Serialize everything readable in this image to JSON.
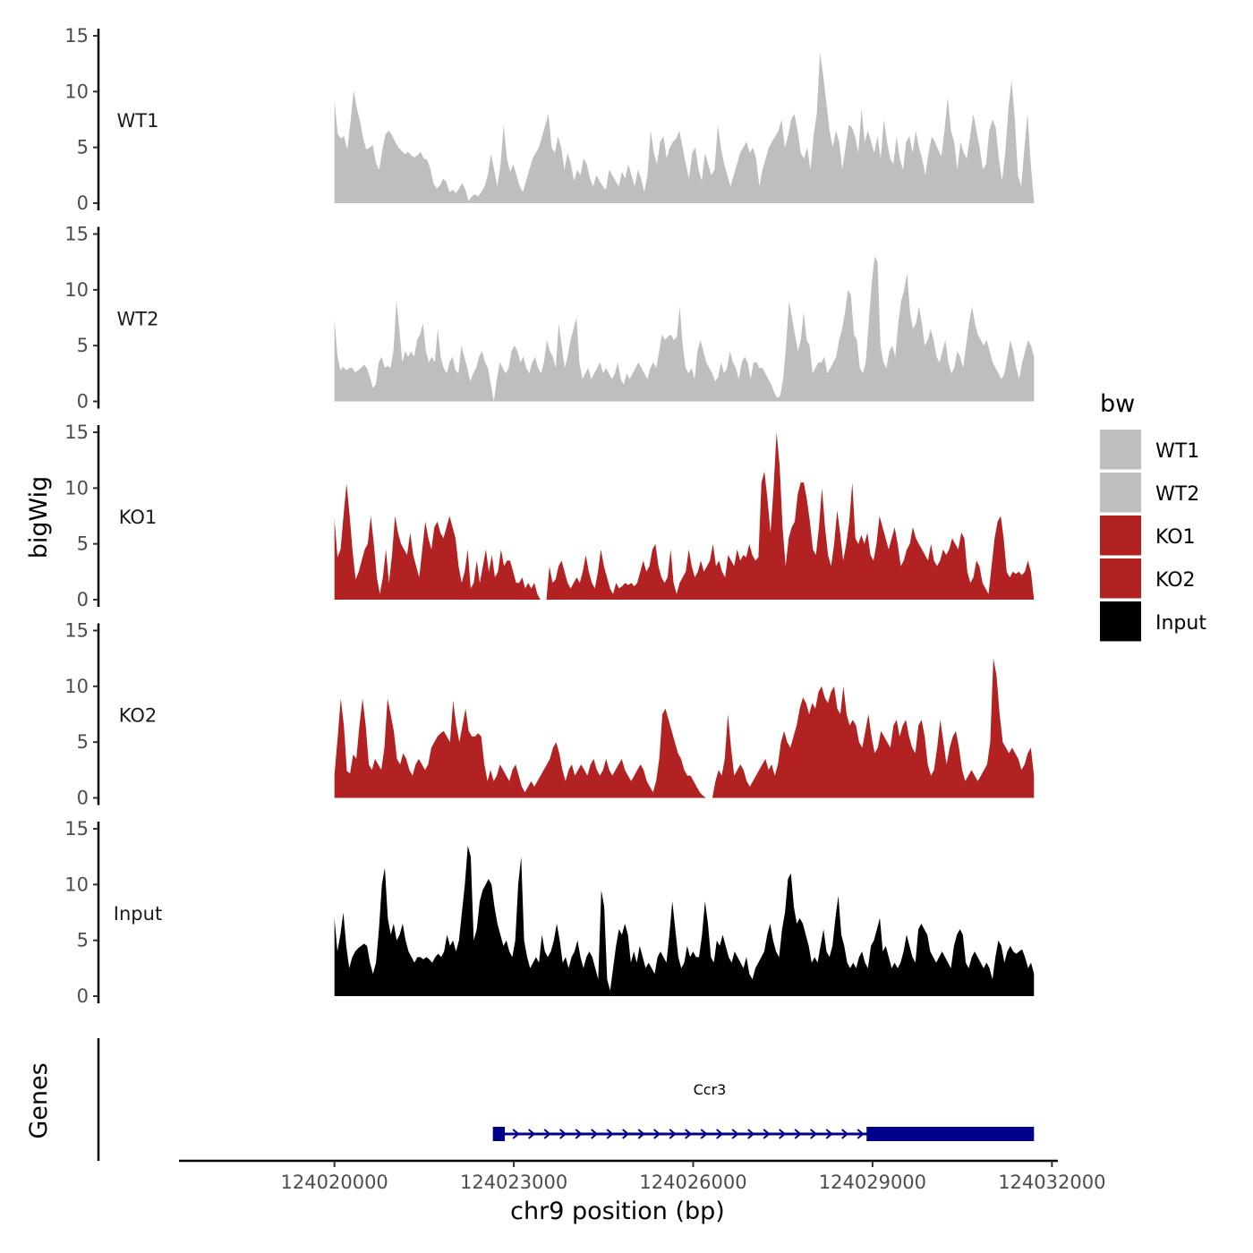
{
  "chart_data": {
    "type": "area",
    "tracks_axis_title": "bigWig",
    "genes_axis_title": "Genes",
    "xlabel": "chr9 position (bp)",
    "xlim": [
      124017400,
      124032100
    ],
    "x_ticks": [
      124020000,
      124023000,
      124026000,
      124029000,
      124032000
    ],
    "x_tick_labels": [
      "124020000",
      "124023000",
      "124026000",
      "124029000",
      "124032000"
    ],
    "ylim": [
      0,
      15
    ],
    "y_ticks": [
      0,
      5,
      10,
      15
    ],
    "y_tick_labels": [
      "0",
      "5",
      "10",
      "15"
    ],
    "x_start": 124020000,
    "x_end": 124031700,
    "legend": {
      "title": "bw",
      "entries": [
        {
          "label": "WT1",
          "color": "#bebebe"
        },
        {
          "label": "WT2",
          "color": "#bebebe"
        },
        {
          "label": "KO1",
          "color": "#b22222"
        },
        {
          "label": "KO2",
          "color": "#b22222"
        },
        {
          "label": "Input",
          "color": "#000000"
        }
      ]
    },
    "series": [
      {
        "name": "WT1",
        "color": "#bebebe",
        "values": [
          9.2,
          6.2,
          5.8,
          6.0,
          4.8,
          7.2,
          10.1,
          8.5,
          7.4,
          5.8,
          4.8,
          5.0,
          5.2,
          3.6,
          3.0,
          4.8,
          6.2,
          6.5,
          6.1,
          5.5,
          5.0,
          4.7,
          4.4,
          4.6,
          4.3,
          4.1,
          4.3,
          4.6,
          4.0,
          3.9,
          3.1,
          1.8,
          1.3,
          1.6,
          2.2,
          1.9,
          1.0,
          1.2,
          0.9,
          1.3,
          1.8,
          1.2,
          0.2,
          0.6,
          0.8,
          0.6,
          1.0,
          1.5,
          2.5,
          4.4,
          3.0,
          1.5,
          3.5,
          7.0,
          4.0,
          2.8,
          3.5,
          2.5,
          1.5,
          1.0,
          2.0,
          3.0,
          4.0,
          4.5,
          5.0,
          6.0,
          7.0,
          8.0,
          5.0,
          4.5,
          6.0,
          5.0,
          3.0,
          4.5,
          3.5,
          2.0,
          3.0,
          2.5,
          4.0,
          3.5,
          2.2,
          1.5,
          2.5,
          2.0,
          1.5,
          1.2,
          3.0,
          2.5,
          2.0,
          1.5,
          2.8,
          2.2,
          3.5,
          2.5,
          1.5,
          3.0,
          2.2,
          1.0,
          2.5,
          6.5,
          4.5,
          3.5,
          5.5,
          6.0,
          4.0,
          5.0,
          5.5,
          5.8,
          6.5,
          5.0,
          3.5,
          2.2,
          4.5,
          5.0,
          3.0,
          2.0,
          4.5,
          3.5,
          2.5,
          3.0,
          7.0,
          5.0,
          3.5,
          2.5,
          1.5,
          2.5,
          3.5,
          4.5,
          5.0,
          5.5,
          4.5,
          5.0,
          4.0,
          1.5,
          3.0,
          4.0,
          5.0,
          5.5,
          6.0,
          6.5,
          7.5,
          5.0,
          6.0,
          7.5,
          8.0,
          6.5,
          4.5,
          4.0,
          5.0,
          3.0,
          6.0,
          8.0,
          13.5,
          11.5,
          9.0,
          6.5,
          5.0,
          6.5,
          5.5,
          3.0,
          5.0,
          7.0,
          6.8,
          6.0,
          4.5,
          8.5,
          5.5,
          6.5,
          5.5,
          4.5,
          6.0,
          4.0,
          7.5,
          5.5,
          4.0,
          3.5,
          6.0,
          4.0,
          3.0,
          5.5,
          6.0,
          4.5,
          6.5,
          5.0,
          4.0,
          2.5,
          4.5,
          6.0,
          5.5,
          4.8,
          4.2,
          6.5,
          9.5,
          6.5,
          5.5,
          3.0,
          5.5,
          4.5,
          4.0,
          6.0,
          8.0,
          6.5,
          5.0,
          3.0,
          3.5,
          6.5,
          7.5,
          6.8,
          4.0,
          2.0,
          4.5,
          8.5,
          11.0,
          7.5,
          2.5,
          1.5,
          5.0,
          8.0,
          3.5,
          0.2
        ]
      },
      {
        "name": "WT2",
        "color": "#bebebe",
        "values": [
          7.4,
          4.1,
          2.8,
          3.1,
          2.8,
          3.0,
          3.0,
          2.6,
          2.8,
          3.0,
          3.3,
          3.0,
          2.2,
          1.2,
          1.5,
          3.5,
          4.0,
          3.0,
          3.2,
          3.0,
          4.5,
          9.0,
          6.5,
          3.5,
          4.5,
          4.0,
          4.5,
          4.0,
          5.5,
          6.0,
          7.0,
          4.5,
          3.5,
          4.0,
          3.5,
          6.5,
          4.0,
          3.0,
          2.5,
          3.5,
          4.0,
          2.8,
          2.5,
          5.0,
          4.0,
          3.0,
          1.8,
          2.5,
          3.0,
          4.0,
          4.5,
          3.5,
          3.0,
          1.5,
          0.0,
          2.0,
          3.5,
          3.0,
          2.5,
          3.0,
          4.5,
          5.0,
          4.5,
          3.5,
          4.0,
          3.0,
          2.5,
          3.5,
          4.0,
          3.0,
          2.5,
          3.5,
          5.5,
          4.5,
          4.0,
          3.0,
          7.0,
          5.0,
          3.0,
          4.0,
          5.5,
          6.5,
          7.5,
          3.5,
          2.0,
          2.5,
          3.0,
          2.0,
          2.5,
          3.0,
          3.5,
          2.5,
          3.0,
          2.5,
          2.0,
          2.5,
          3.5,
          2.0,
          1.5,
          2.5,
          2.0,
          2.5,
          3.0,
          3.5,
          3.0,
          2.5,
          2.0,
          3.0,
          3.5,
          3.0,
          4.5,
          6.0,
          5.5,
          5.8,
          6.0,
          5.5,
          5.8,
          8.5,
          5.0,
          3.0,
          2.5,
          3.0,
          2.0,
          4.5,
          5.5,
          4.5,
          3.5,
          3.0,
          2.5,
          1.8,
          2.2,
          3.5,
          2.5,
          3.0,
          4.5,
          3.5,
          3.0,
          2.0,
          3.5,
          4.0,
          3.5,
          2.0,
          3.5,
          3.5,
          3.0,
          3.0,
          2.5,
          2.0,
          1.5,
          0.8,
          0.3,
          0.5,
          2.0,
          5.0,
          9.0,
          7.5,
          6.0,
          4.5,
          5.5,
          8.0,
          5.5,
          5.0,
          2.5,
          3.0,
          3.5,
          3.5,
          4.0,
          2.5,
          3.0,
          3.5,
          4.0,
          5.5,
          6.5,
          8.0,
          10.0,
          9.5,
          6.0,
          5.5,
          3.0,
          2.5,
          3.5,
          7.0,
          10.5,
          13.0,
          12.5,
          5.0,
          3.5,
          3.0,
          4.5,
          5.0,
          4.0,
          7.0,
          9.0,
          10.0,
          11.5,
          8.0,
          6.5,
          7.0,
          8.5,
          7.0,
          5.0,
          5.5,
          6.5,
          5.5,
          4.0,
          3.5,
          4.5,
          5.5,
          3.5,
          2.5,
          3.0,
          4.5,
          4.0,
          3.0,
          5.0,
          7.0,
          8.5,
          7.0,
          6.0,
          5.5,
          5.0,
          5.5,
          4.5,
          3.5,
          3.0,
          2.5,
          2.0,
          2.5,
          4.0,
          5.5,
          4.5,
          3.0,
          2.0,
          3.5,
          4.5,
          5.5,
          5.0,
          4.0
        ]
      },
      {
        "name": "KO1",
        "color": "#b22222",
        "values": [
          7.2,
          3.8,
          4.5,
          7.5,
          10.4,
          7.6,
          4.3,
          1.8,
          2.5,
          3.5,
          4.5,
          5.0,
          7.5,
          5.0,
          2.0,
          0.5,
          2.0,
          4.5,
          1.5,
          4.0,
          7.5,
          6.0,
          5.0,
          4.5,
          4.0,
          6.0,
          4.0,
          3.0,
          2.0,
          4.5,
          7.0,
          5.5,
          4.5,
          6.5,
          7.0,
          6.0,
          5.5,
          6.5,
          7.5,
          6.5,
          5.5,
          3.0,
          1.5,
          2.5,
          4.5,
          1.0,
          1.5,
          3.5,
          1.5,
          3.0,
          4.5,
          2.5,
          4.0,
          2.0,
          2.5,
          4.5,
          3.0,
          3.5,
          3.5,
          2.5,
          1.5,
          1.5,
          2.0,
          1.0,
          1.5,
          1.0,
          1.5,
          0.5,
          0.0,
          0.0,
          0.0,
          3.0,
          1.5,
          1.8,
          3.0,
          3.5,
          2.5,
          1.5,
          1.0,
          1.5,
          2.0,
          1.5,
          2.5,
          4.0,
          2.5,
          1.5,
          1.0,
          2.5,
          4.5,
          3.0,
          2.0,
          1.0,
          0.5,
          1.5,
          1.0,
          1.2,
          1.5,
          1.3,
          1.5,
          1.2,
          1.5,
          2.5,
          3.5,
          2.5,
          3.0,
          4.5,
          5.0,
          3.0,
          2.0,
          1.5,
          2.0,
          4.5,
          1.5,
          0.5,
          1.5,
          2.0,
          2.5,
          4.5,
          3.0,
          2.0,
          2.5,
          3.5,
          2.5,
          3.0,
          3.5,
          5.0,
          3.0,
          3.5,
          2.5,
          2.0,
          4.0,
          3.5,
          3.0,
          4.5,
          3.5,
          4.0,
          3.8,
          5.0,
          4.0,
          3.5,
          3.8,
          10.5,
          11.5,
          9.0,
          6.0,
          10.0,
          15.0,
          12.0,
          6.5,
          3.0,
          5.5,
          6.5,
          7.0,
          9.5,
          10.5,
          10.5,
          9.0,
          7.0,
          4.5,
          4.0,
          6.5,
          10.0,
          6.5,
          4.0,
          3.0,
          5.0,
          8.0,
          6.0,
          3.5,
          5.0,
          7.0,
          10.5,
          5.5,
          5.0,
          5.8,
          5.0,
          6.0,
          4.0,
          3.5,
          5.0,
          7.5,
          6.5,
          5.5,
          4.5,
          5.5,
          6.5,
          5.0,
          3.0,
          3.5,
          4.5,
          5.0,
          6.5,
          5.5,
          5.0,
          4.5,
          4.0,
          3.5,
          5.0,
          3.5,
          3.0,
          3.5,
          4.5,
          4.0,
          4.5,
          5.5,
          5.0,
          4.5,
          6.0,
          5.5,
          2.5,
          1.5,
          2.0,
          3.5,
          3.0,
          1.5,
          1.0,
          0.5,
          3.0,
          5.5,
          7.0,
          7.5,
          5.5,
          2.5,
          2.0,
          2.5,
          2.3,
          2.5,
          2.2,
          2.5,
          3.5,
          2.5,
          0.0
        ]
      },
      {
        "name": "KO2",
        "color": "#b22222",
        "values": [
          2.1,
          5.3,
          8.9,
          6.5,
          2.4,
          2.2,
          3.9,
          3.5,
          6.5,
          8.9,
          6.5,
          3.0,
          2.5,
          3.5,
          3.0,
          2.5,
          4.5,
          8.9,
          7.5,
          6.0,
          3.5,
          3.0,
          4.0,
          3.5,
          2.5,
          2.0,
          3.0,
          3.5,
          3.0,
          2.5,
          3.0,
          4.5,
          5.0,
          5.5,
          5.8,
          6.0,
          5.5,
          5.0,
          8.7,
          6.5,
          5.0,
          6.5,
          8.0,
          6.0,
          5.5,
          5.5,
          5.8,
          5.5,
          3.0,
          1.5,
          2.5,
          1.5,
          2.0,
          3.0,
          2.5,
          2.0,
          1.5,
          2.5,
          3.0,
          2.0,
          1.0,
          0.5,
          1.0,
          1.5,
          1.0,
          1.5,
          2.0,
          2.5,
          3.0,
          3.5,
          4.5,
          5.0,
          4.0,
          2.5,
          1.5,
          2.5,
          3.0,
          2.0,
          2.5,
          3.0,
          2.5,
          2.0,
          3.0,
          3.5,
          2.5,
          2.0,
          2.5,
          3.5,
          2.5,
          2.0,
          2.5,
          3.0,
          3.5,
          2.5,
          2.0,
          1.5,
          2.0,
          2.5,
          3.0,
          2.5,
          1.5,
          1.0,
          0.5,
          1.5,
          3.5,
          7.5,
          8.0,
          7.0,
          6.0,
          5.0,
          4.0,
          3.5,
          2.5,
          2.0,
          2.0,
          1.5,
          1.0,
          0.5,
          0.2,
          0.0,
          0.0,
          0.0,
          1.5,
          2.5,
          2.0,
          3.5,
          7.5,
          4.5,
          2.0,
          2.5,
          3.0,
          2.5,
          1.5,
          1.0,
          1.5,
          2.0,
          2.5,
          3.0,
          3.5,
          2.5,
          3.0,
          2.0,
          3.0,
          5.0,
          6.0,
          5.0,
          4.5,
          5.5,
          6.5,
          8.0,
          9.0,
          8.5,
          7.5,
          8.5,
          8.0,
          9.5,
          10.0,
          9.0,
          8.5,
          9.5,
          10.0,
          8.0,
          7.5,
          10.0,
          7.5,
          6.5,
          7.0,
          6.5,
          5.0,
          4.5,
          6.0,
          7.5,
          5.5,
          4.0,
          4.5,
          6.0,
          5.5,
          5.0,
          4.5,
          6.5,
          7.0,
          5.5,
          6.5,
          7.0,
          5.5,
          4.5,
          4.0,
          6.5,
          7.0,
          5.5,
          3.0,
          2.0,
          2.5,
          4.5,
          7.0,
          5.0,
          3.0,
          4.5,
          5.5,
          6.0,
          4.5,
          2.5,
          1.5,
          2.0,
          2.5,
          2.0,
          1.5,
          2.0,
          2.5,
          3.0,
          5.0,
          12.5,
          11.0,
          7.5,
          5.0,
          4.5,
          4.0,
          4.5,
          4.0,
          3.5,
          2.5,
          3.0,
          4.0,
          4.5,
          2.0
        ]
      },
      {
        "name": "Input",
        "color": "#000000",
        "values": [
          7.0,
          4.0,
          5.5,
          7.5,
          4.5,
          2.5,
          3.5,
          4.0,
          4.3,
          4.5,
          4.7,
          4.5,
          3.0,
          2.0,
          3.0,
          6.0,
          10.0,
          11.5,
          7.0,
          5.5,
          6.5,
          5.0,
          5.5,
          6.5,
          5.0,
          4.0,
          3.5,
          3.0,
          3.5,
          3.5,
          3.3,
          3.5,
          3.3,
          3.0,
          3.5,
          3.8,
          3.5,
          4.0,
          5.5,
          4.5,
          5.0,
          4.0,
          5.0,
          7.5,
          10.0,
          13.5,
          12.5,
          5.0,
          6.0,
          8.5,
          9.5,
          10.0,
          10.5,
          10.0,
          8.0,
          6.5,
          5.5,
          4.5,
          5.0,
          4.0,
          3.5,
          5.0,
          10.0,
          12.5,
          5.0,
          3.5,
          2.5,
          3.0,
          3.5,
          3.0,
          5.5,
          4.0,
          3.5,
          4.0,
          5.0,
          6.5,
          5.0,
          3.0,
          3.5,
          2.5,
          3.5,
          4.0,
          5.0,
          3.5,
          2.5,
          3.5,
          4.0,
          3.5,
          2.5,
          1.5,
          9.5,
          8.0,
          1.5,
          0.5,
          2.5,
          4.5,
          6.0,
          5.5,
          6.5,
          5.5,
          3.0,
          4.0,
          3.0,
          4.5,
          3.5,
          2.5,
          3.0,
          2.5,
          2.0,
          3.5,
          4.0,
          3.5,
          3.0,
          5.5,
          8.5,
          6.0,
          3.5,
          2.5,
          3.0,
          4.5,
          3.5,
          4.0,
          3.5,
          3.5,
          5.5,
          8.5,
          6.5,
          3.5,
          3.0,
          5.0,
          4.5,
          5.5,
          4.5,
          3.5,
          3.0,
          4.0,
          3.5,
          3.0,
          2.5,
          3.5,
          2.0,
          1.5,
          2.5,
          3.0,
          3.5,
          4.0,
          5.5,
          6.5,
          5.0,
          4.0,
          3.5,
          6.0,
          7.5,
          10.5,
          11.0,
          8.0,
          6.5,
          7.0,
          6.5,
          5.5,
          4.5,
          3.0,
          3.5,
          3.0,
          4.5,
          6.0,
          4.0,
          3.5,
          4.5,
          7.0,
          9.0,
          5.5,
          4.5,
          3.0,
          2.5,
          3.0,
          2.5,
          3.5,
          4.0,
          3.0,
          2.5,
          4.5,
          5.0,
          6.0,
          7.0,
          4.0,
          4.5,
          3.5,
          2.5,
          3.0,
          2.5,
          3.0,
          4.0,
          5.5,
          4.5,
          3.5,
          3.0,
          6.0,
          6.5,
          6.0,
          5.5,
          4.0,
          3.5,
          3.0,
          3.5,
          4.0,
          3.5,
          3.0,
          2.5,
          4.5,
          5.5,
          6.0,
          5.5,
          3.0,
          2.5,
          3.5,
          4.0,
          3.5,
          3.0,
          2.5,
          3.0,
          2.5,
          1.5,
          3.5,
          5.0,
          4.5,
          3.0,
          4.0,
          4.5,
          4.0,
          3.8,
          4.0,
          4.2,
          3.5,
          2.5,
          3.0,
          2.0
        ]
      }
    ],
    "genes": [
      {
        "name": "Ccr3",
        "start": 124022650,
        "end": 124031700,
        "strand": "+",
        "exons": [
          [
            124022650,
            124022850
          ],
          [
            124028900,
            124031700
          ]
        ]
      }
    ]
  }
}
